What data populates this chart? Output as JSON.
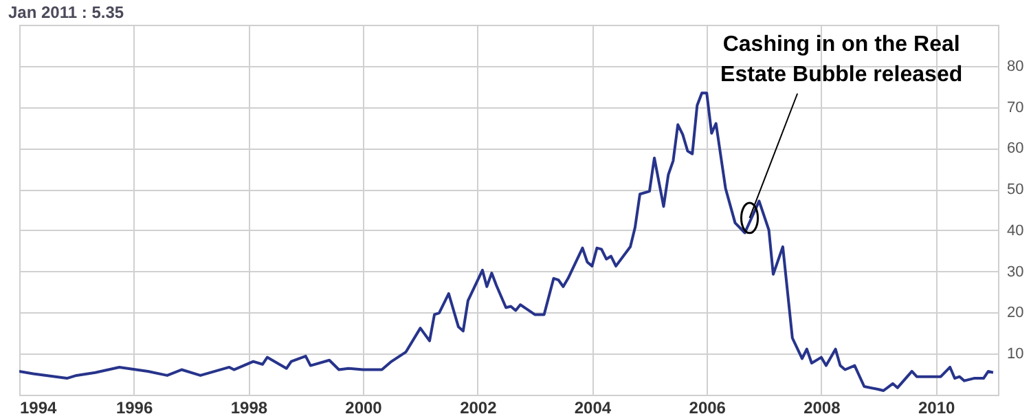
{
  "chart_data": {
    "type": "line",
    "title": "Jan 2011 : 5.35",
    "x": [
      "1994-01",
      "1994-04",
      "1994-11",
      "1995-01",
      "1995-05",
      "1995-10",
      "1996-04",
      "1996-08",
      "1996-11",
      "1997-03",
      "1997-09",
      "1997-10",
      "1998-02",
      "1998-04",
      "1998-05",
      "1998-09",
      "1998-10",
      "1999-01",
      "1999-02",
      "1999-06",
      "1999-08",
      "1999-10",
      "2000-01",
      "2000-05",
      "2000-07",
      "2000-10",
      "2001-01",
      "2001-03",
      "2001-04",
      "2001-05",
      "2001-07",
      "2001-09",
      "2001-10",
      "2001-11",
      "2002-02",
      "2002-03",
      "2002-04",
      "2002-05",
      "2002-07",
      "2002-08",
      "2002-09",
      "2002-10",
      "2003-01",
      "2003-03",
      "2003-05",
      "2003-06",
      "2003-07",
      "2003-08",
      "2003-11",
      "2003-12",
      "2004-01",
      "2004-02",
      "2004-03",
      "2004-04",
      "2004-05",
      "2004-06",
      "2004-09",
      "2004-10",
      "2004-11",
      "2005-01",
      "2005-02",
      "2005-04",
      "2005-05",
      "2005-06",
      "2005-07",
      "2005-08",
      "2005-09",
      "2005-10",
      "2005-11",
      "2005-12",
      "2006-01",
      "2006-02",
      "2006-03",
      "2006-05",
      "2006-07",
      "2006-09",
      "2006-12",
      "2007-02",
      "2007-03",
      "2007-05",
      "2007-07",
      "2007-09",
      "2007-10",
      "2007-11",
      "2008-01",
      "2008-02",
      "2008-04",
      "2008-05",
      "2008-06",
      "2008-08",
      "2008-10",
      "2009-01",
      "2009-02",
      "2009-04",
      "2009-05",
      "2009-08",
      "2009-09",
      "2010-02",
      "2010-04",
      "2010-05",
      "2010-06",
      "2010-07",
      "2010-09",
      "2010-11",
      "2010-12",
      "2011-01"
    ],
    "series": [
      {
        "color": "#27348b",
        "values": [
          5.7,
          5.1,
          4.0,
          4.7,
          5.4,
          6.7,
          5.7,
          4.7,
          6.1,
          4.7,
          6.7,
          6.1,
          8.1,
          7.4,
          9.1,
          6.4,
          8.1,
          9.4,
          7.1,
          8.4,
          6.1,
          6.4,
          6.1,
          6.1,
          8.1,
          10.4,
          16.2,
          13.1,
          19.5,
          19.9,
          24.6,
          16.5,
          15.5,
          22.9,
          30.3,
          26.3,
          29.6,
          26.6,
          21.2,
          21.5,
          20.5,
          21.9,
          19.5,
          19.5,
          28.3,
          27.9,
          26.3,
          28.3,
          35.7,
          32.3,
          31.3,
          35.7,
          35.4,
          33.0,
          33.7,
          31.3,
          36.0,
          40.7,
          48.8,
          49.5,
          57.6,
          45.8,
          53.5,
          56.9,
          65.7,
          63.3,
          59.3,
          58.6,
          70.4,
          73.4,
          73.4,
          63.6,
          66.0,
          50.2,
          41.8,
          39.4,
          47.1,
          40.1,
          29.3,
          36.0,
          13.8,
          8.8,
          11.1,
          7.7,
          9.1,
          7.1,
          11.1,
          7.1,
          6.1,
          7.1,
          2.0,
          1.3,
          1.0,
          2.7,
          1.7,
          5.7,
          4.4,
          4.4,
          6.7,
          4.0,
          4.4,
          3.4,
          4.0,
          4.0,
          5.7,
          5.4
        ]
      }
    ],
    "xlim": [
      "1994-01",
      "2011-02"
    ],
    "xticks": [
      "1994",
      "1996",
      "1998",
      "2000",
      "2002",
      "2004",
      "2006",
      "2008",
      "2010"
    ],
    "ylim": [
      0,
      90
    ],
    "yticks": [
      10,
      20,
      30,
      40,
      50,
      60,
      70,
      80
    ],
    "grid": true,
    "annotations": [
      {
        "text": "Cashing in on the Real Estate Bubble released",
        "x": "2006-10",
        "y": 43
      }
    ]
  }
}
